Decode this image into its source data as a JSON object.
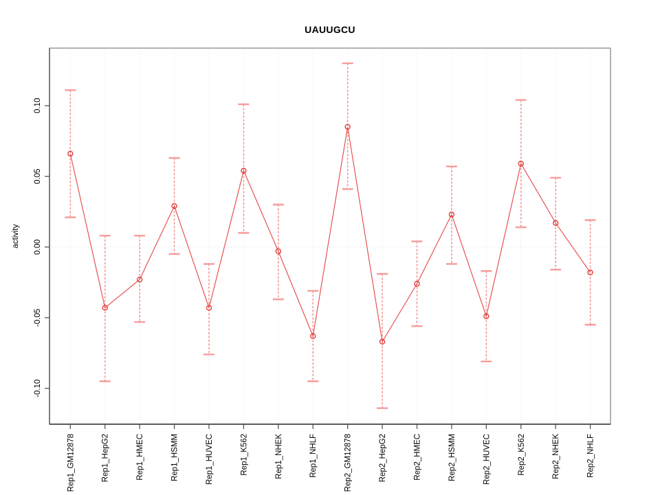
{
  "chart_data": {
    "type": "line",
    "title": "UAUUGCU",
    "xlabel": "",
    "ylabel": "activity",
    "legend": "none",
    "grid": "dotted vertical gridline at each category; dotted horizontal line at y=0",
    "marker": "open-circle",
    "categories": [
      "Rep1_GM12878",
      "Rep1_HepG2",
      "Rep1_HMEC",
      "Rep1_HSMM",
      "Rep1_HUVEC",
      "Rep1_K562",
      "Rep1_NHEK",
      "Rep1_NHLF",
      "Rep2_GM12878",
      "Rep2_HepG2",
      "Rep2_HMEC",
      "Rep2_HSMM",
      "Rep2_HUVEC",
      "Rep2_K562",
      "Rep2_NHEK",
      "Rep2_NHLF"
    ],
    "series": [
      {
        "name": "activity",
        "values": [
          0.066,
          -0.043,
          -0.023,
          0.029,
          -0.043,
          0.054,
          -0.003,
          -0.063,
          0.085,
          -0.067,
          -0.026,
          0.023,
          -0.049,
          0.059,
          0.017,
          -0.018
        ],
        "error_low": [
          0.021,
          -0.095,
          -0.053,
          -0.005,
          -0.076,
          0.01,
          -0.037,
          -0.095,
          0.041,
          -0.114,
          -0.056,
          -0.012,
          -0.081,
          0.014,
          -0.016,
          -0.055
        ],
        "error_high": [
          0.111,
          0.008,
          0.008,
          0.063,
          -0.012,
          0.101,
          0.03,
          -0.031,
          0.13,
          -0.019,
          0.004,
          0.057,
          -0.017,
          0.104,
          0.049,
          0.019
        ]
      }
    ],
    "yticks": [
      -0.1,
      -0.05,
      0.0,
      0.05,
      0.1
    ],
    "ytick_labels": [
      "-0.10",
      "-0.05",
      "0.00",
      "0.05",
      "0.10"
    ],
    "ylim": [
      -0.125,
      0.141
    ],
    "colors": {
      "line": "#e85151",
      "point": "#e23d3d",
      "error_bar": "#f59b9b",
      "grid": "#dcdcdc",
      "axis_dark": "#333333",
      "axis_left": "#555555",
      "box": "#999999",
      "tick": "#555555"
    }
  }
}
